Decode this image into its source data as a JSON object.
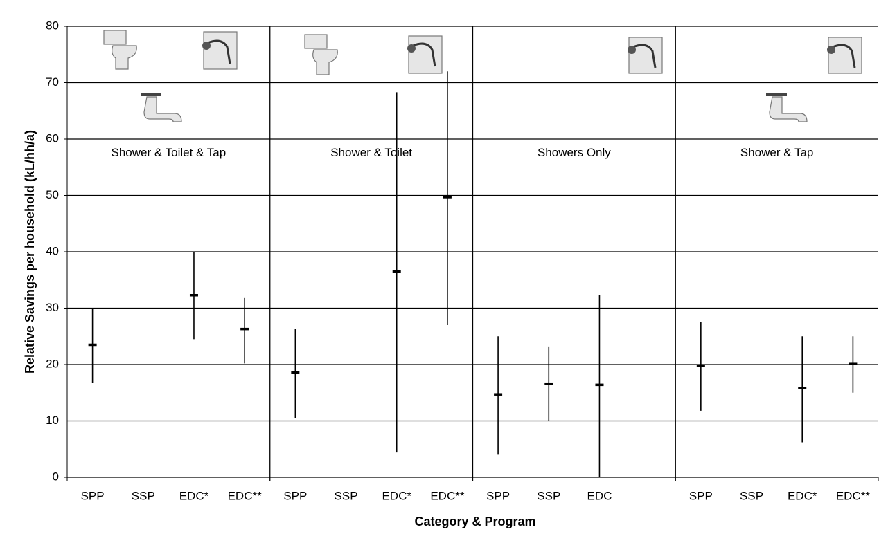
{
  "chart_data": {
    "type": "errorbar",
    "x_label": "Category & Program",
    "y_label": "Relative Savings per household (kL/hh/a)",
    "categories": [
      "SPP",
      "SSP",
      "EDC*",
      "EDC**",
      "SPP",
      "SSP",
      "EDC*",
      "EDC**",
      "SPP",
      "SSP",
      "EDC",
      null,
      "SPP",
      "SSP",
      "EDC*",
      "EDC**"
    ],
    "group_labels": [
      "Shower & Toilet & Tap",
      "Shower & Toilet",
      "Showers Only",
      "Shower & Tap"
    ],
    "series": [
      {
        "color": "#000000",
        "values": [
          23.5,
          null,
          32.3,
          26.3,
          18.6,
          null,
          36.5,
          49.7,
          14.7,
          16.6,
          16.4,
          null,
          19.8,
          null,
          15.8,
          20.1
        ],
        "lower": [
          16.8,
          null,
          24.5,
          20.2,
          10.5,
          null,
          4.4,
          27,
          4,
          10,
          0,
          null,
          11.8,
          null,
          6.2,
          15
        ],
        "upper": [
          30,
          null,
          40,
          31.8,
          26.3,
          null,
          68.3,
          72,
          25,
          23.2,
          32.3,
          null,
          27.5,
          null,
          25,
          25
        ]
      }
    ],
    "ylim": [
      0,
      80
    ],
    "yticks": [
      0,
      10,
      20,
      30,
      40,
      50,
      60,
      70,
      80
    ],
    "grid": true
  }
}
